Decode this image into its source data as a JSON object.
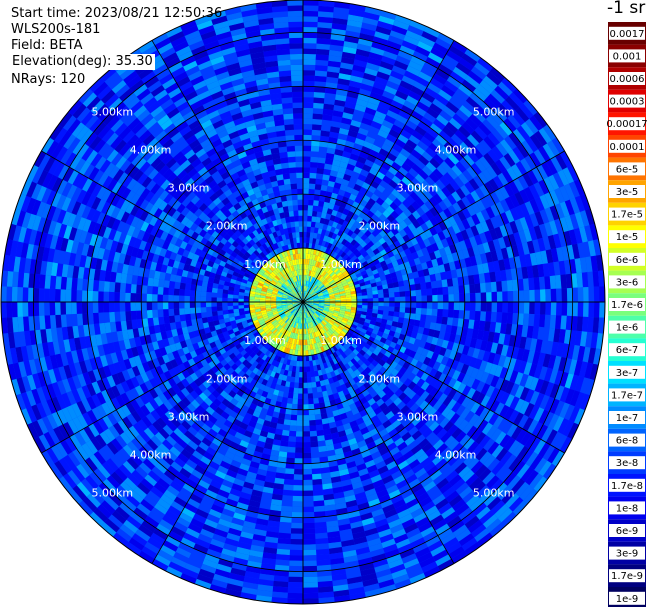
{
  "info": {
    "start_time": "Start time: 2023/08/21 12:50:36",
    "instrument": "WLS200s-181",
    "field": "Field: BETA",
    "elevation": "Elevation(deg): 35.30",
    "nrays": "NRays: 120"
  },
  "colorbar": {
    "title": "-1 sr",
    "labels": [
      "0.0017",
      "0.001",
      "0.0006",
      "0.0003",
      "0.00017",
      "0.0001",
      "6e-5",
      "3e-5",
      "1.7e-5",
      "1e-5",
      "6e-6",
      "3e-6",
      "1.7e-6",
      "1e-6",
      "6e-7",
      "3e-7",
      "1.7e-7",
      "1e-7",
      "6e-8",
      "3e-8",
      "1.7e-8",
      "1e-8",
      "6e-9",
      "3e-9",
      "1.7e-9",
      "1e-9"
    ],
    "colors": [
      "#680000",
      "#8a0000",
      "#b00000",
      "#e00000",
      "#ff1500",
      "#ff4400",
      "#ff7400",
      "#ffa400",
      "#ffd200",
      "#ffff00",
      "#d2ff25",
      "#a6ff52",
      "#7aff7d",
      "#4dffaa",
      "#25ffd2",
      "#00e0ff",
      "#00b4ff",
      "#008cff",
      "#0064ff",
      "#003cff",
      "#0014ff",
      "#0000ee",
      "#0000c8",
      "#0000a4",
      "#000080",
      "#000060"
    ]
  },
  "chart_data": {
    "type": "heatmap",
    "projection": "polar-ppi",
    "field": "BETA",
    "units": "sr-1",
    "instrument": "WLS200s-181",
    "start_time": "2023/08/21 12:50:36",
    "elevation_deg": 35.3,
    "nrays": 120,
    "range_rings_km": [
      1.0,
      2.0,
      3.0,
      4.0,
      5.0
    ],
    "ring_labels": [
      "1.00km",
      "2.00km",
      "3.00km",
      "4.00km",
      "5.00km"
    ],
    "max_range_km": 5.6,
    "spokes_deg": [
      0,
      30,
      60,
      90,
      120,
      150,
      180,
      210,
      240,
      270,
      300,
      330
    ],
    "color_scale": "log",
    "vmin": 1e-09,
    "vmax": 0.0017,
    "features": [
      {
        "description": "high backscatter ring",
        "range_km": [
          0.5,
          1.0
        ],
        "approx_value": 6e-06
      },
      {
        "description": "background",
        "range_km": [
          1.0,
          5.6
        ],
        "approx_value": 3e-08
      }
    ]
  }
}
